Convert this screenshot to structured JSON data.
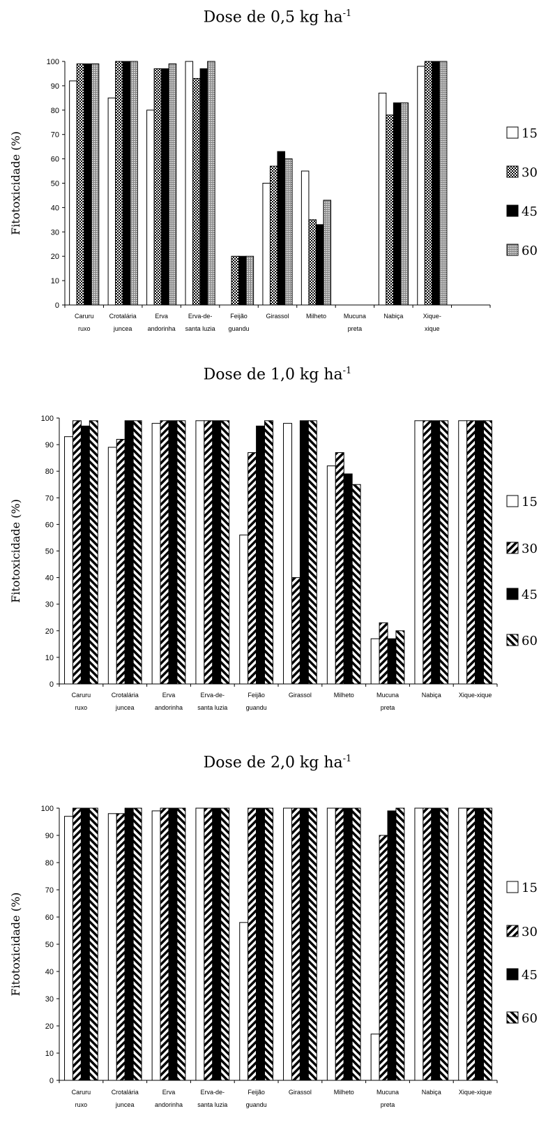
{
  "chart_data": [
    {
      "type": "bar",
      "title": "Dose de 0,5 kg ha",
      "title_sup": "-1",
      "ylabel": "Fitotoxicidade (%)",
      "ylim": [
        0,
        100
      ],
      "yticks": [
        0,
        10,
        20,
        30,
        40,
        50,
        60,
        70,
        80,
        90,
        100
      ],
      "grid": false,
      "legend_position": "right",
      "categories": [
        [
          "Caruru",
          "ruxo"
        ],
        [
          "Crotalária",
          "juncea"
        ],
        [
          "Erva",
          "andorinha"
        ],
        [
          "Erva-de-",
          "santa luzia"
        ],
        [
          "Feijão",
          "guandu"
        ],
        [
          "Girassol",
          ""
        ],
        [
          "Milheto",
          ""
        ],
        [
          "Mucuna",
          "preta"
        ],
        [
          "Nabiça",
          ""
        ],
        [
          "Xique-",
          "xique"
        ]
      ],
      "series": [
        {
          "name": "15",
          "pattern": "white",
          "values": [
            92,
            85,
            80,
            100,
            0,
            50,
            55,
            0,
            87,
            98
          ]
        },
        {
          "name": "30",
          "pattern": "checker",
          "values": [
            99,
            100,
            97,
            93,
            20,
            57,
            35,
            0,
            78,
            100
          ]
        },
        {
          "name": "45",
          "pattern": "black",
          "values": [
            99,
            100,
            97,
            97,
            20,
            63,
            33,
            0,
            83,
            100
          ]
        },
        {
          "name": "60",
          "pattern": "grid",
          "values": [
            99,
            100,
            99,
            100,
            20,
            60,
            43,
            0,
            83,
            100
          ]
        }
      ]
    },
    {
      "type": "bar",
      "title": "Dose de 1,0 kg ha",
      "title_sup": "-1",
      "ylabel": "Fitotoxicidade (%)",
      "ylim": [
        0,
        100
      ],
      "yticks": [
        0,
        10,
        20,
        30,
        40,
        50,
        60,
        70,
        80,
        90,
        100
      ],
      "grid": false,
      "legend_position": "right",
      "categories": [
        [
          "Caruru",
          "ruxo"
        ],
        [
          "Crotalária",
          "juncea"
        ],
        [
          "Erva",
          "andorinha"
        ],
        [
          "Erva-de-",
          "santa luzia"
        ],
        [
          "Feijão",
          "guandu"
        ],
        [
          "Girassol",
          ""
        ],
        [
          "Milheto",
          ""
        ],
        [
          "Mucuna",
          "preta"
        ],
        [
          "Nabiça",
          ""
        ],
        [
          "Xique-xique",
          ""
        ]
      ],
      "series": [
        {
          "name": "15",
          "pattern": "white",
          "values": [
            93,
            89,
            98,
            99,
            56,
            98,
            82,
            17,
            99,
            99
          ]
        },
        {
          "name": "30",
          "pattern": "diag",
          "values": [
            99,
            92,
            99,
            99,
            87,
            40,
            87,
            23,
            99,
            99
          ]
        },
        {
          "name": "45",
          "pattern": "black",
          "values": [
            97,
            99,
            99,
            99,
            97,
            99,
            79,
            17,
            99,
            99
          ]
        },
        {
          "name": "60",
          "pattern": "diag2",
          "values": [
            99,
            99,
            99,
            99,
            99,
            99,
            75,
            20,
            99,
            99
          ]
        }
      ]
    },
    {
      "type": "bar",
      "title": "Dose de 2,0 kg ha",
      "title_sup": "-1",
      "ylabel": "Fitotoxicidade (%)",
      "ylim": [
        0,
        100
      ],
      "yticks": [
        0,
        10,
        20,
        30,
        40,
        50,
        60,
        70,
        80,
        90,
        100
      ],
      "grid": false,
      "legend_position": "right",
      "categories": [
        [
          "Caruru",
          "ruxo"
        ],
        [
          "Crotalária",
          "juncea"
        ],
        [
          "Erva",
          "andorinha"
        ],
        [
          "Erva-de-",
          "santa luzia"
        ],
        [
          "Feijão",
          "guandu"
        ],
        [
          "Girassol",
          ""
        ],
        [
          "Milheto",
          ""
        ],
        [
          "Mucuna",
          "preta"
        ],
        [
          "Nabiça",
          ""
        ],
        [
          "Xique-xique",
          ""
        ]
      ],
      "series": [
        {
          "name": "15",
          "pattern": "white",
          "values": [
            97,
            98,
            99,
            100,
            58,
            100,
            100,
            17,
            100,
            100
          ]
        },
        {
          "name": "30",
          "pattern": "diag",
          "values": [
            100,
            98,
            100,
            100,
            100,
            100,
            100,
            90,
            100,
            100
          ]
        },
        {
          "name": "45",
          "pattern": "black",
          "values": [
            100,
            100,
            100,
            100,
            100,
            100,
            100,
            99,
            100,
            100
          ]
        },
        {
          "name": "60",
          "pattern": "diag2",
          "values": [
            100,
            100,
            100,
            100,
            100,
            100,
            100,
            100,
            100,
            100
          ]
        }
      ]
    }
  ]
}
